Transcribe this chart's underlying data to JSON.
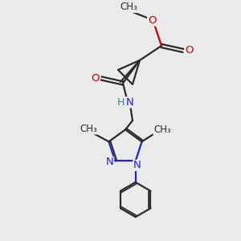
{
  "bg_color": "#ebebeb",
  "bond_color": "#2a2a2a",
  "N_color": "#2020cc",
  "O_color": "#cc0000",
  "H_color": "#408080",
  "line_width": 1.6,
  "figsize": [
    3.0,
    3.0
  ],
  "dpi": 100,
  "xlim": [
    0,
    10
  ],
  "ylim": [
    0,
    10
  ]
}
